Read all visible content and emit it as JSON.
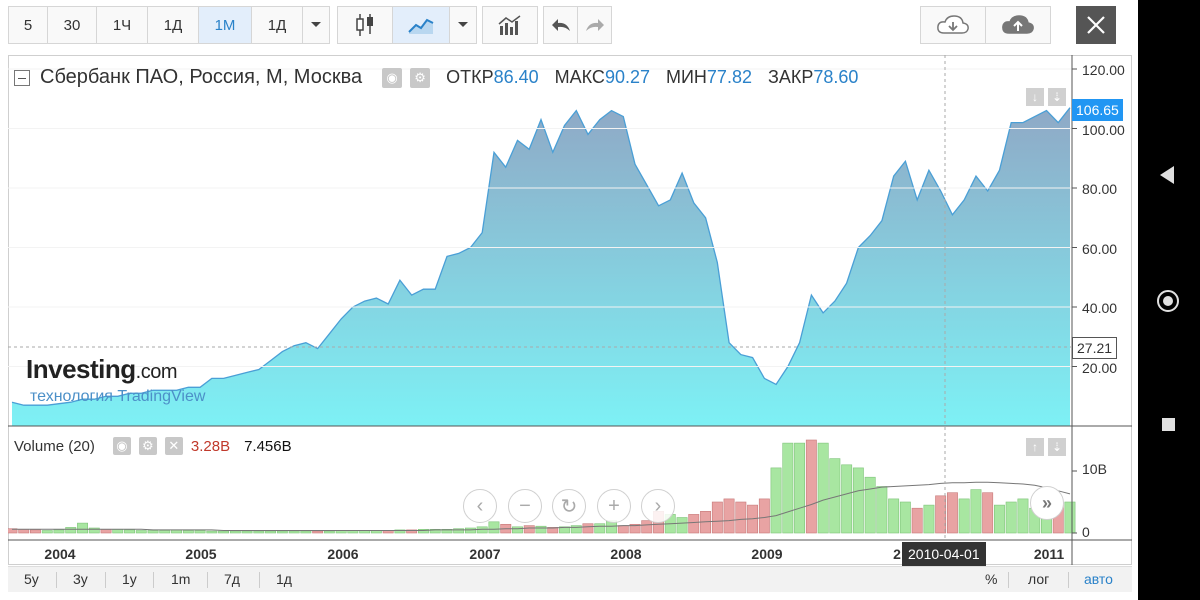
{
  "toolbar": {
    "timeframes": [
      "5",
      "30",
      "1Ч",
      "1Д",
      "1М",
      "1Д"
    ],
    "active_timeframe": "1М",
    "icons": [
      "candlestick-icon",
      "area-chart-icon",
      "chevron-down-icon",
      "indicators-icon",
      "undo-icon",
      "redo-icon",
      "cloud-download-icon",
      "cloud-upload-icon",
      "close-icon"
    ]
  },
  "legend": {
    "symbol": "Сбербанк ПАО, Россия, М, Москва",
    "open_label": "ОТКР",
    "open_value": "86.40",
    "high_label": "МАКС",
    "high_value": "90.27",
    "low_label": "МИН",
    "low_value": "77.82",
    "close_label": "ЗАКР",
    "close_value": "78.60"
  },
  "volume_legend": {
    "title": "Volume (20)",
    "value_a": "3.28B",
    "value_b": "7.456B"
  },
  "logo": {
    "brand": "Investing",
    "domain": ".com",
    "tagline": "технология TradingView"
  },
  "price_axis": {
    "labels": [
      "120.00",
      "100.00",
      "80.00",
      "60.00",
      "40.00",
      "20.00"
    ],
    "last_price": "106.65",
    "crosshair_price": "27.21"
  },
  "volume_axis": {
    "labels": [
      "10B",
      "0"
    ]
  },
  "time_axis": {
    "years": [
      "2004",
      "2005",
      "2006",
      "2007",
      "2008",
      "2009",
      "2",
      "2011"
    ],
    "crosshair_date": "2010-04-01"
  },
  "bottom_bar": {
    "ranges": [
      "5y",
      "3y",
      "1y",
      "1m",
      "7д",
      "1д"
    ],
    "options": [
      "%",
      "лог",
      "авто"
    ],
    "active_option": "авто"
  },
  "colors": {
    "accent": "#2a82c9",
    "area_top": "#8fa9c6",
    "area_bottom": "#7df1f5",
    "line": "#4a9fd6",
    "volume_up": "#a8e6a1",
    "volume_down": "#e8a3a3"
  },
  "chart_data": [
    {
      "type": "area",
      "title": "Сбербанк ПАО, Россия, М, Москва",
      "xlabel": "",
      "ylabel": "",
      "ylim": [
        0,
        125
      ],
      "xlim": [
        "2003-09",
        "2011-03"
      ],
      "x": [
        "2003-09",
        "2003-10",
        "2003-11",
        "2003-12",
        "2004-01",
        "2004-02",
        "2004-03",
        "2004-04",
        "2004-05",
        "2004-06",
        "2004-07",
        "2004-08",
        "2004-09",
        "2004-10",
        "2004-11",
        "2004-12",
        "2005-01",
        "2005-02",
        "2005-03",
        "2005-04",
        "2005-05",
        "2005-06",
        "2005-07",
        "2005-08",
        "2005-09",
        "2005-10",
        "2005-11",
        "2005-12",
        "2006-01",
        "2006-02",
        "2006-03",
        "2006-04",
        "2006-05",
        "2006-06",
        "2006-07",
        "2006-08",
        "2006-09",
        "2006-10",
        "2006-11",
        "2006-12",
        "2007-01",
        "2007-02",
        "2007-03",
        "2007-04",
        "2007-05",
        "2007-06",
        "2007-07",
        "2007-08",
        "2007-09",
        "2007-10",
        "2007-11",
        "2007-12",
        "2008-01",
        "2008-02",
        "2008-03",
        "2008-04",
        "2008-05",
        "2008-06",
        "2008-07",
        "2008-08",
        "2008-09",
        "2008-10",
        "2008-11",
        "2008-12",
        "2009-01",
        "2009-02",
        "2009-03",
        "2009-04",
        "2009-05",
        "2009-06",
        "2009-07",
        "2009-08",
        "2009-09",
        "2009-10",
        "2009-11",
        "2009-12",
        "2010-01",
        "2010-02",
        "2010-03",
        "2010-04",
        "2010-05",
        "2010-06",
        "2010-07",
        "2010-08",
        "2010-09",
        "2010-10",
        "2010-11",
        "2010-12",
        "2011-01",
        "2011-02",
        "2011-03"
      ],
      "y": [
        8,
        7,
        7,
        7,
        7.5,
        8,
        9,
        9,
        10,
        10,
        11,
        11,
        12,
        12,
        12,
        13,
        13,
        16,
        16,
        17,
        18,
        19,
        22,
        25,
        27,
        28,
        26,
        31,
        36,
        40,
        42,
        43,
        41,
        49,
        44,
        46,
        46,
        57,
        58,
        60,
        65,
        92,
        87,
        96,
        93,
        103,
        92,
        101,
        106,
        98,
        103,
        106,
        104,
        88,
        81,
        74,
        76,
        85,
        75,
        70,
        55,
        28,
        24,
        23,
        16,
        14,
        20,
        28,
        44,
        38,
        42,
        48,
        60,
        64,
        69,
        84,
        89,
        76,
        86,
        79,
        71,
        76,
        84,
        79,
        86,
        102,
        102,
        104,
        106,
        102,
        107
      ]
    },
    {
      "type": "bar",
      "title": "Volume (20)",
      "xlabel": "",
      "ylabel": "",
      "ylim": [
        0,
        15
      ],
      "x": [
        "2003-09",
        "2003-10",
        "2003-11",
        "2003-12",
        "2004-01",
        "2004-02",
        "2004-03",
        "2004-04",
        "2004-05",
        "2004-06",
        "2004-07",
        "2004-08",
        "2004-09",
        "2004-10",
        "2004-11",
        "2004-12",
        "2005-01",
        "2005-02",
        "2005-03",
        "2005-04",
        "2005-05",
        "2005-06",
        "2005-07",
        "2005-08",
        "2005-09",
        "2005-10",
        "2005-11",
        "2005-12",
        "2006-01",
        "2006-02",
        "2006-03",
        "2006-04",
        "2006-05",
        "2006-06",
        "2006-07",
        "2006-08",
        "2006-09",
        "2006-10",
        "2006-11",
        "2006-12",
        "2007-01",
        "2007-02",
        "2007-03",
        "2007-04",
        "2007-05",
        "2007-06",
        "2007-07",
        "2007-08",
        "2007-09",
        "2007-10",
        "2007-11",
        "2007-12",
        "2008-01",
        "2008-02",
        "2008-03",
        "2008-04",
        "2008-05",
        "2008-06",
        "2008-07",
        "2008-08",
        "2008-09",
        "2008-10",
        "2008-11",
        "2008-12",
        "2009-01",
        "2009-02",
        "2009-03",
        "2009-04",
        "2009-05",
        "2009-06",
        "2009-07",
        "2009-08",
        "2009-09",
        "2009-10",
        "2009-11",
        "2009-12",
        "2010-01",
        "2010-02",
        "2010-03",
        "2010-04",
        "2010-05",
        "2010-06",
        "2010-07",
        "2010-08",
        "2010-09",
        "2010-10",
        "2010-11",
        "2010-12",
        "2011-01",
        "2011-02",
        "2011-03"
      ],
      "values": [
        0.7,
        0.6,
        0.5,
        0.4,
        0.5,
        0.9,
        1.6,
        0.8,
        0.6,
        0.6,
        0.5,
        0.4,
        0.4,
        0.4,
        0.5,
        0.4,
        0.4,
        0.3,
        0.3,
        0.3,
        0.3,
        0.3,
        0.3,
        0.3,
        0.3,
        0.3,
        0.3,
        0.3,
        0.4,
        0.4,
        0.4,
        0.4,
        0.4,
        0.5,
        0.5,
        0.6,
        0.6,
        0.6,
        0.7,
        0.8,
        1.0,
        1.8,
        1.4,
        1.0,
        1.2,
        1.1,
        0.9,
        1.0,
        1.2,
        1.5,
        1.5,
        2.0,
        1.2,
        1.4,
        2.0,
        3.5,
        3.0,
        2.5,
        3.0,
        3.5,
        5.0,
        5.5,
        5.0,
        4.5,
        5.5,
        10.5,
        14.5,
        14.5,
        15,
        14.5,
        12,
        11,
        10.5,
        9,
        7.5,
        5.5,
        5,
        4,
        4.5,
        6,
        6.5,
        5.5,
        7,
        6.5,
        4.5,
        5,
        5.5,
        4,
        5,
        4.5,
        5
      ],
      "directions": [
        "d",
        "d",
        "d",
        "u",
        "u",
        "u",
        "u",
        "u",
        "d",
        "u",
        "u",
        "u",
        "u",
        "u",
        "u",
        "u",
        "u",
        "u",
        "u",
        "u",
        "u",
        "u",
        "u",
        "u",
        "u",
        "u",
        "d",
        "u",
        "u",
        "u",
        "u",
        "u",
        "d",
        "u",
        "d",
        "u",
        "u",
        "u",
        "u",
        "u",
        "u",
        "u",
        "d",
        "u",
        "d",
        "u",
        "d",
        "u",
        "u",
        "d",
        "u",
        "u",
        "d",
        "d",
        "d",
        "d",
        "u",
        "u",
        "d",
        "d",
        "d",
        "d",
        "d",
        "d",
        "d",
        "u",
        "u",
        "u",
        "d",
        "u",
        "u",
        "u",
        "u",
        "u",
        "u",
        "u",
        "u",
        "d",
        "u",
        "d",
        "d",
        "u",
        "u",
        "d",
        "u",
        "u",
        "u",
        "u",
        "u",
        "d",
        "u"
      ],
      "moving_average": [
        0.6,
        0.6,
        0.6,
        0.6,
        0.6,
        0.6,
        0.6,
        0.6,
        0.6,
        0.6,
        0.6,
        0.6,
        0.5,
        0.5,
        0.5,
        0.5,
        0.5,
        0.5,
        0.4,
        0.4,
        0.4,
        0.4,
        0.4,
        0.4,
        0.4,
        0.4,
        0.4,
        0.4,
        0.4,
        0.4,
        0.4,
        0.4,
        0.4,
        0.4,
        0.4,
        0.4,
        0.5,
        0.5,
        0.5,
        0.5,
        0.6,
        0.6,
        0.7,
        0.7,
        0.8,
        0.8,
        0.8,
        0.9,
        0.9,
        1.0,
        1.1,
        1.1,
        1.2,
        1.2,
        1.3,
        1.4,
        1.5,
        1.6,
        1.7,
        1.8,
        1.9,
        2.0,
        2.2,
        2.3,
        2.5,
        2.8,
        3.4,
        4.0,
        4.6,
        5.3,
        5.8,
        6.3,
        6.8,
        7.1,
        7.4,
        7.5,
        7.6,
        7.7,
        7.8,
        8.0,
        8.1,
        8.1,
        8.2,
        8.2,
        8.1,
        8.0,
        7.9,
        7.7,
        7.3,
        6.8,
        6.3
      ]
    }
  ]
}
